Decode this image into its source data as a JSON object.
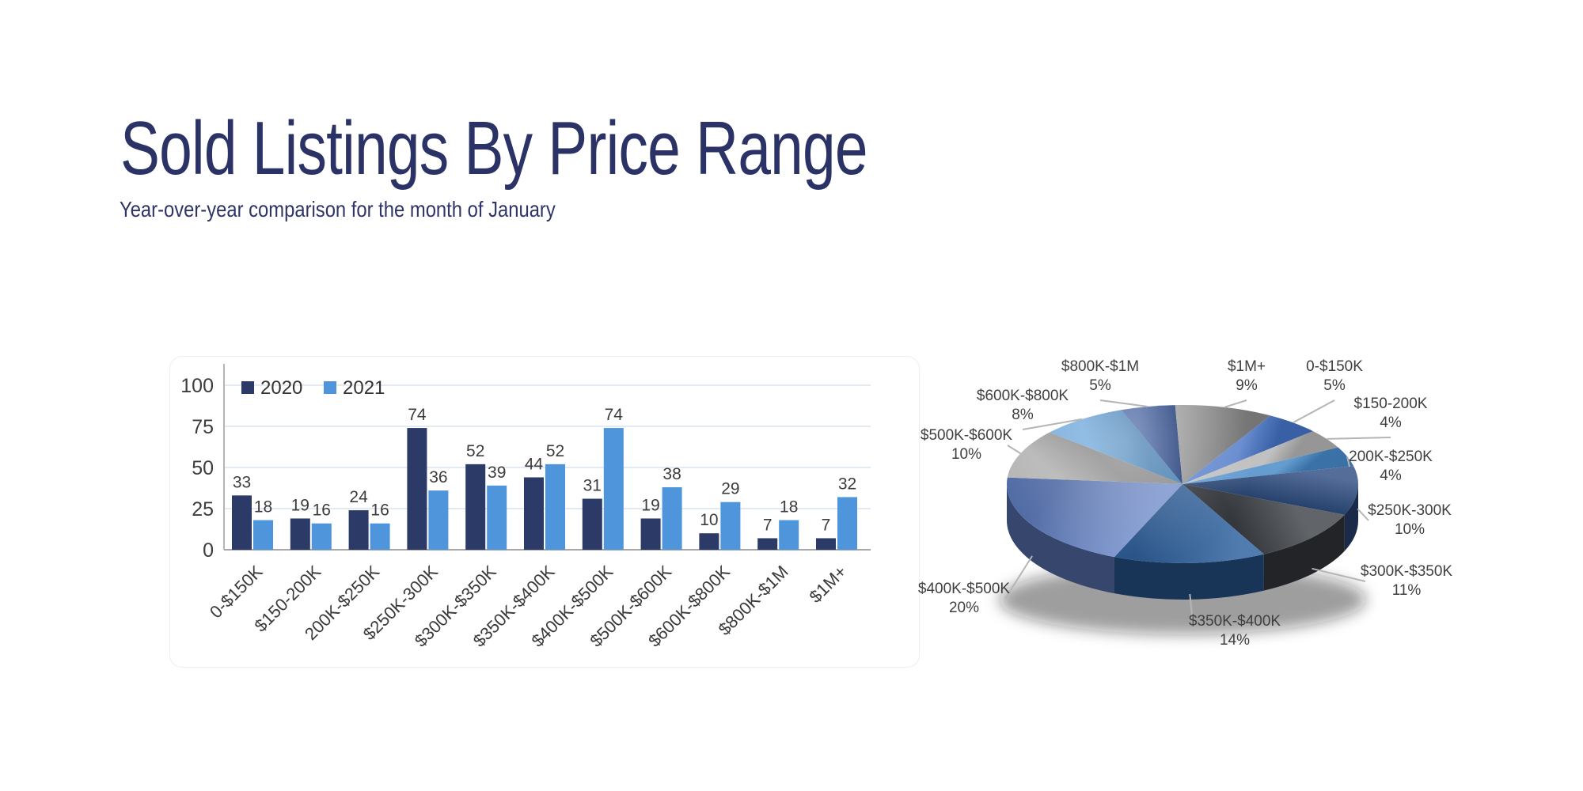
{
  "page": {
    "title": "Sold Listings By Price Range",
    "subtitle": "Year-over-year comparison for the month of January"
  },
  "colors": {
    "title_text": "#2B3266",
    "axis_line": "#A8A8A8",
    "gridline": "#DCE3EE",
    "chart_text": "#3C3C3C",
    "leader_line": "#B5B5B5",
    "bar_2020": "#2B3A67",
    "bar_2021": "#4E95DB"
  },
  "chart_data": [
    {
      "type": "bar",
      "title": "",
      "legend_position": "top-left",
      "grid": true,
      "ylim": [
        0,
        100
      ],
      "yticks": [
        0,
        25,
        50,
        75,
        100
      ],
      "categories": [
        "0-$150K",
        "$150-200K",
        "200K-$250K",
        "$250K-300K",
        "$300K-$350K",
        "$350K-$400K",
        "$400K-$500K",
        "$500K-$600K",
        "$600K-$800K",
        "$800K-$1M",
        "$1M+"
      ],
      "series": [
        {
          "name": "2020",
          "color": "#2B3A67",
          "values": [
            33,
            19,
            24,
            74,
            52,
            44,
            31,
            19,
            10,
            7,
            7
          ]
        },
        {
          "name": "2021",
          "color": "#4E95DB",
          "values": [
            18,
            16,
            16,
            36,
            39,
            52,
            74,
            38,
            29,
            18,
            32
          ]
        }
      ]
    },
    {
      "type": "pie",
      "style": "3d",
      "start_angle_deg": 30,
      "labels": [
        "0-$150K",
        "$150-200K",
        "200K-$250K",
        "$250K-300K",
        "$300K-$350K",
        "$350K-$400K",
        "$400K-$500K",
        "$500K-$600K",
        "$600K-$800K",
        "$800K-$1M",
        "$1M+"
      ],
      "values": [
        5,
        4,
        4,
        10,
        11,
        14,
        20,
        10,
        8,
        5,
        9
      ],
      "percent_labels": [
        "5%",
        "4%",
        "4%",
        "10%",
        "11%",
        "14%",
        "20%",
        "10%",
        "8%",
        "5%",
        "9%"
      ],
      "colors": [
        "#4472C4",
        "#B3B3B3",
        "#4587C6",
        "#2E4E82",
        "#3E4247",
        "#2B5F9E",
        "#6280C4",
        "#A6A6A6",
        "#5B9BD5",
        "#2B4C93",
        "#8A8A8A"
      ]
    }
  ]
}
